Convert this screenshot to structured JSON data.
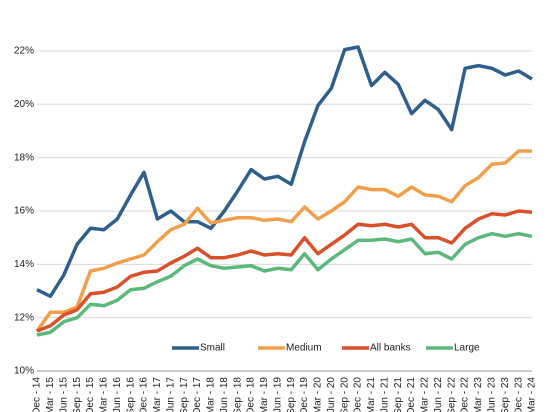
{
  "chart_data": {
    "type": "line",
    "categories": [
      "Dec - 14",
      "Mar - 15",
      "Jun - 15",
      "Sep - 15",
      "Dec - 15",
      "Mar - 16",
      "Jun - 16",
      "Sep - 16",
      "Dec - 16",
      "Mar - 17",
      "Jun - 17",
      "Sep - 17",
      "Dec - 17",
      "Mar - 18",
      "Jun - 18",
      "Sep - 18",
      "Dec - 18",
      "Mar - 19",
      "Jun - 19",
      "Sep - 19",
      "Dec - 19",
      "Mar - 20",
      "Jun - 20",
      "Sep - 20",
      "Dec - 20",
      "Mar - 21",
      "Jun - 21",
      "Sep - 21",
      "Dec - 21",
      "Mar - 22",
      "Jun - 22",
      "Sep - 22",
      "Dec - 22",
      "Mar - 23",
      "Jun - 23",
      "Sep - 23",
      "Dec - 23",
      "Mar - 24"
    ],
    "series": [
      {
        "name": "Small",
        "color": "#2f5f8c",
        "values": [
          13.05,
          12.8,
          13.6,
          14.75,
          15.35,
          15.3,
          15.7,
          16.6,
          17.45,
          15.7,
          16.0,
          15.6,
          15.6,
          15.35,
          16.0,
          16.75,
          17.55,
          17.2,
          17.3,
          17.0,
          18.6,
          19.95,
          20.6,
          22.05,
          22.15,
          20.7,
          21.2,
          20.75,
          19.65,
          20.15,
          19.8,
          19.05,
          21.35,
          21.45,
          21.35,
          21.1,
          21.25,
          20.95
        ]
      },
      {
        "name": "Medium",
        "color": "#f0a04b",
        "values": [
          11.5,
          12.2,
          12.2,
          12.4,
          13.75,
          13.85,
          14.05,
          14.2,
          14.35,
          14.85,
          15.3,
          15.5,
          16.1,
          15.55,
          15.65,
          15.75,
          15.75,
          15.65,
          15.7,
          15.6,
          16.15,
          15.7,
          16.0,
          16.35,
          16.9,
          16.8,
          16.8,
          16.55,
          16.9,
          16.6,
          16.55,
          16.35,
          16.95,
          17.25,
          17.75,
          17.8,
          18.25,
          18.25
        ]
      },
      {
        "name": "All banks",
        "color": "#d9512b",
        "values": [
          11.5,
          11.7,
          12.1,
          12.3,
          12.9,
          12.95,
          13.15,
          13.55,
          13.7,
          13.75,
          14.05,
          14.3,
          14.6,
          14.25,
          14.25,
          14.35,
          14.5,
          14.35,
          14.4,
          14.35,
          15.0,
          14.4,
          14.75,
          15.1,
          15.5,
          15.45,
          15.5,
          15.4,
          15.5,
          15.0,
          15.0,
          14.8,
          15.35,
          15.7,
          15.9,
          15.85,
          16.0,
          15.95
        ]
      },
      {
        "name": "Large",
        "color": "#5cb87b",
        "values": [
          11.35,
          11.45,
          11.85,
          12.0,
          12.5,
          12.45,
          12.65,
          13.05,
          13.1,
          13.35,
          13.55,
          13.95,
          14.2,
          13.95,
          13.85,
          13.9,
          13.95,
          13.75,
          13.85,
          13.8,
          14.4,
          13.8,
          14.2,
          14.55,
          14.9,
          14.9,
          14.95,
          14.85,
          14.95,
          14.4,
          14.45,
          14.2,
          14.75,
          15.0,
          15.15,
          15.05,
          15.15,
          15.05
        ]
      }
    ],
    "ylim": [
      10,
      23
    ],
    "yticks": [
      {
        "value": 10,
        "label": "10%"
      },
      {
        "value": 12,
        "label": "12%"
      },
      {
        "value": 14,
        "label": "14%"
      },
      {
        "value": 16,
        "label": "16%"
      },
      {
        "value": 18,
        "label": "18%"
      },
      {
        "value": 20,
        "label": "20%"
      },
      {
        "value": 22,
        "label": "22%"
      }
    ],
    "grid": true,
    "legend": "bottom"
  }
}
